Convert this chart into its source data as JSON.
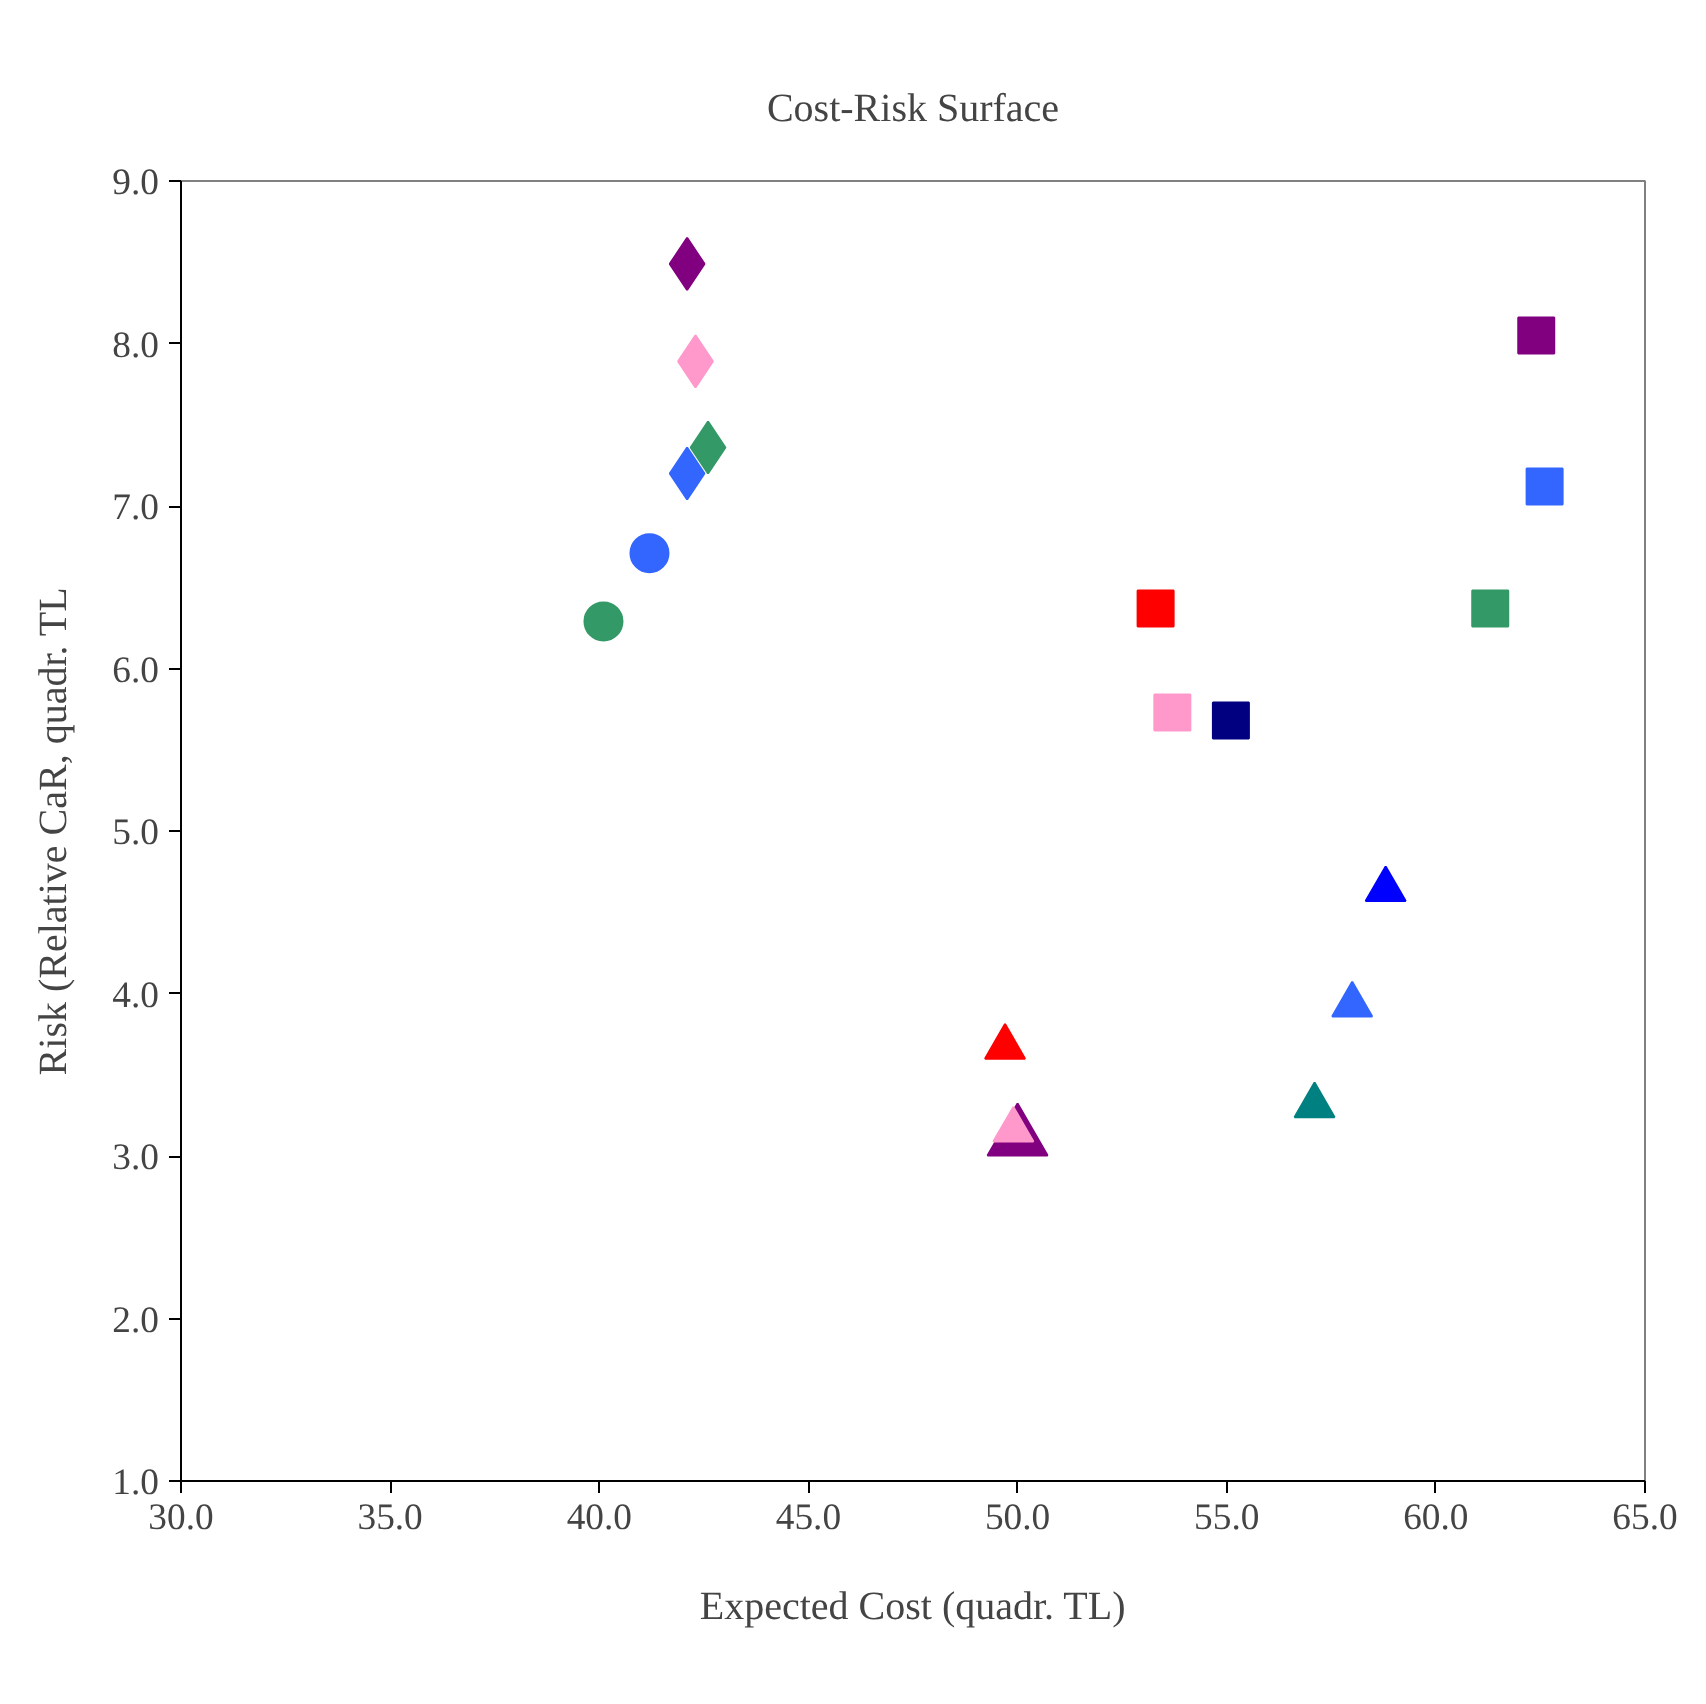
{
  "chart_data": {
    "type": "scatter",
    "title": "Cost-Risk Surface",
    "xlabel": "Expected Cost (quadr. TL)",
    "ylabel": "Risk (Relative CaR, quadr. TL",
    "xlim": [
      30,
      65
    ],
    "ylim": [
      1,
      9
    ],
    "xticks": [
      {
        "value": 30,
        "label": "30.0"
      },
      {
        "value": 35,
        "label": "35.0"
      },
      {
        "value": 40,
        "label": "40.0"
      },
      {
        "value": 45,
        "label": "45.0"
      },
      {
        "value": 50,
        "label": "50.0"
      },
      {
        "value": 55,
        "label": "55.0"
      },
      {
        "value": 60,
        "label": "60.0"
      },
      {
        "value": 65,
        "label": "65.0"
      }
    ],
    "yticks": [
      {
        "value": 1,
        "label": "1.0"
      },
      {
        "value": 2,
        "label": "2.0"
      },
      {
        "value": 3,
        "label": "3.0"
      },
      {
        "value": 4,
        "label": "4.0"
      },
      {
        "value": 5,
        "label": "5.0"
      },
      {
        "value": 6,
        "label": "6.0"
      },
      {
        "value": 7,
        "label": "7.0"
      },
      {
        "value": 8,
        "label": "8.0"
      },
      {
        "value": 9,
        "label": "9.0"
      }
    ],
    "grid": false,
    "series": [
      {
        "marker": "diamond",
        "color": "#800080",
        "x": [
          42.1
        ],
        "values": [
          8.49
        ]
      },
      {
        "marker": "diamond",
        "color": "#ff99cc",
        "x": [
          42.3
        ],
        "values": [
          7.89
        ]
      },
      {
        "marker": "diamond",
        "color": "#339966",
        "x": [
          42.6
        ],
        "values": [
          7.36
        ]
      },
      {
        "marker": "diamond",
        "color": "#3366ff",
        "x": [
          42.1
        ],
        "values": [
          7.2
        ]
      },
      {
        "marker": "circle",
        "color": "#3366ff",
        "x": [
          41.2
        ],
        "values": [
          6.71
        ]
      },
      {
        "marker": "circle",
        "color": "#339966",
        "x": [
          40.1
        ],
        "values": [
          6.29
        ]
      },
      {
        "marker": "square",
        "color": "#ff0000",
        "x": [
          53.3
        ],
        "values": [
          6.37
        ]
      },
      {
        "marker": "square",
        "color": "#ff99cc",
        "x": [
          53.7
        ],
        "values": [
          5.73
        ]
      },
      {
        "marker": "square",
        "color": "#000080",
        "x": [
          55.1
        ],
        "values": [
          5.68
        ]
      },
      {
        "marker": "square",
        "color": "#800080",
        "x": [
          62.4
        ],
        "values": [
          8.05
        ]
      },
      {
        "marker": "square",
        "color": "#3366ff",
        "x": [
          62.6
        ],
        "values": [
          7.12
        ]
      },
      {
        "marker": "square",
        "color": "#339966",
        "x": [
          61.3
        ],
        "values": [
          6.37
        ]
      },
      {
        "marker": "triangle",
        "color": "#ff0000",
        "x": [
          49.7
        ],
        "values": [
          3.67
        ]
      },
      {
        "marker": "triangle",
        "color": "#800080",
        "x": [
          50.0
        ],
        "values": [
          3.11
        ]
      },
      {
        "marker": "triangle",
        "color": "#ff99cc",
        "x": [
          49.9
        ],
        "values": [
          3.16
        ]
      },
      {
        "marker": "triangle",
        "color": "#008080",
        "x": [
          57.1
        ],
        "values": [
          3.31
        ]
      },
      {
        "marker": "triangle",
        "color": "#3366ff",
        "x": [
          58.0
        ],
        "values": [
          3.93
        ]
      },
      {
        "marker": "triangle",
        "color": "#0000ff",
        "x": [
          58.8
        ],
        "values": [
          4.64
        ]
      }
    ]
  }
}
